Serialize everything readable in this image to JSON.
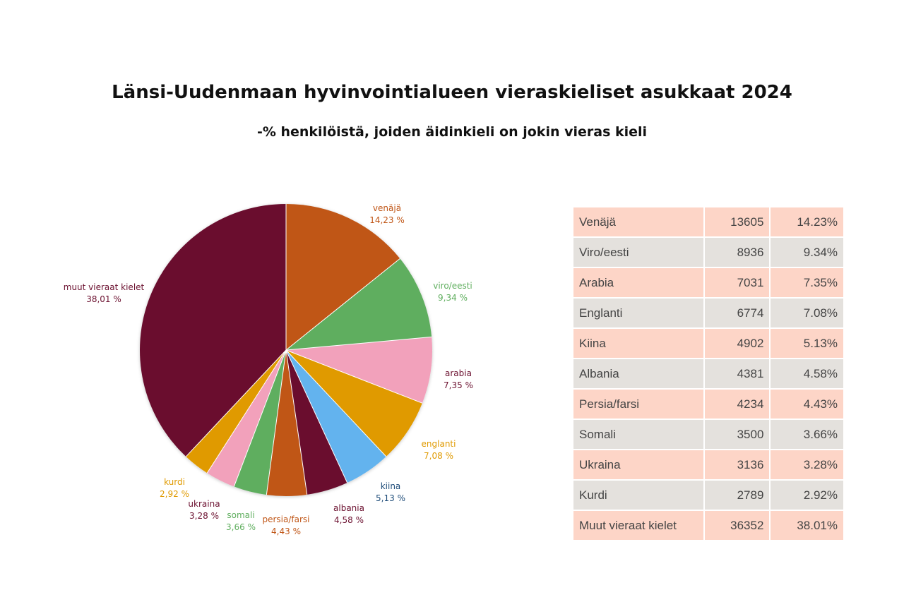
{
  "header": {
    "title": "Länsi-Uudenmaan hyvinvointialueen vieraskieliset asukkaat 2024",
    "subtitle": "-% henkilöistä, joiden äidinkieli on jokin vieras kieli"
  },
  "chart_data": {
    "type": "pie",
    "title": "Länsi-Uudenmaan hyvinvointialueen vieraskieliset asukkaat 2024",
    "subtitle": "-% henkilöistä, joiden äidinkieli on jokin vieras kieli",
    "unit": "%",
    "slices": [
      {
        "label": "venäjä",
        "value_label": "14,23 %",
        "value": 14.23,
        "color": "#c05617",
        "label_color": "#c05617"
      },
      {
        "label": "viro/eesti",
        "value_label": "9,34 %",
        "value": 9.34,
        "color": "#5fae5e",
        "label_color": "#5fae5e"
      },
      {
        "label": "arabia",
        "value_label": "7,35 %",
        "value": 7.35,
        "color": "#f2a1bb",
        "label_color": "#6b102f"
      },
      {
        "label": "englanti",
        "value_label": "7,08 %",
        "value": 7.08,
        "color": "#e09a00",
        "label_color": "#e09a00"
      },
      {
        "label": "kiina",
        "value_label": "5,13 %",
        "value": 5.13,
        "color": "#63b3ee",
        "label_color": "#1e4c79"
      },
      {
        "label": "albania",
        "value_label": "4,58 %",
        "value": 4.58,
        "color": "#6b102f",
        "label_color": "#6b102f"
      },
      {
        "label": "persia/farsi",
        "value_label": "4,43 %",
        "value": 4.43,
        "color": "#c05617",
        "label_color": "#c05617"
      },
      {
        "label": "somali",
        "value_label": "3,66 %",
        "value": 3.66,
        "color": "#5fae5e",
        "label_color": "#5fae5e"
      },
      {
        "label": "ukraina",
        "value_label": "3,28 %",
        "value": 3.28,
        "color": "#f2a1bb",
        "label_color": "#6b102f"
      },
      {
        "label": "kurdi",
        "value_label": "2,92 %",
        "value": 2.92,
        "color": "#e09a00",
        "label_color": "#e09a00"
      },
      {
        "label": "muut vieraat kielet",
        "value_label": "38,01 %",
        "value": 38.01,
        "color": "#6b102f",
        "label_color": "#6b102f"
      }
    ]
  },
  "table": {
    "rows": [
      {
        "language": "Venäjä",
        "count": "13605",
        "percent": "14.23%"
      },
      {
        "language": "Viro/eesti",
        "count": "8936",
        "percent": "9.34%"
      },
      {
        "language": "Arabia",
        "count": "7031",
        "percent": "7.35%"
      },
      {
        "language": "Englanti",
        "count": "6774",
        "percent": "7.08%"
      },
      {
        "language": "Kiina",
        "count": "4902",
        "percent": "5.13%"
      },
      {
        "language": "Albania",
        "count": "4381",
        "percent": "4.58%"
      },
      {
        "language": "Persia/farsi",
        "count": "4234",
        "percent": "4.43%"
      },
      {
        "language": "Somali",
        "count": "3500",
        "percent": "3.66%"
      },
      {
        "language": "Ukraina",
        "count": "3136",
        "percent": "3.28%"
      },
      {
        "language": "Kurdi",
        "count": "2789",
        "percent": "2.92%"
      },
      {
        "language": "Muut vieraat kielet",
        "count": "36352",
        "percent": "38.01%"
      }
    ]
  }
}
